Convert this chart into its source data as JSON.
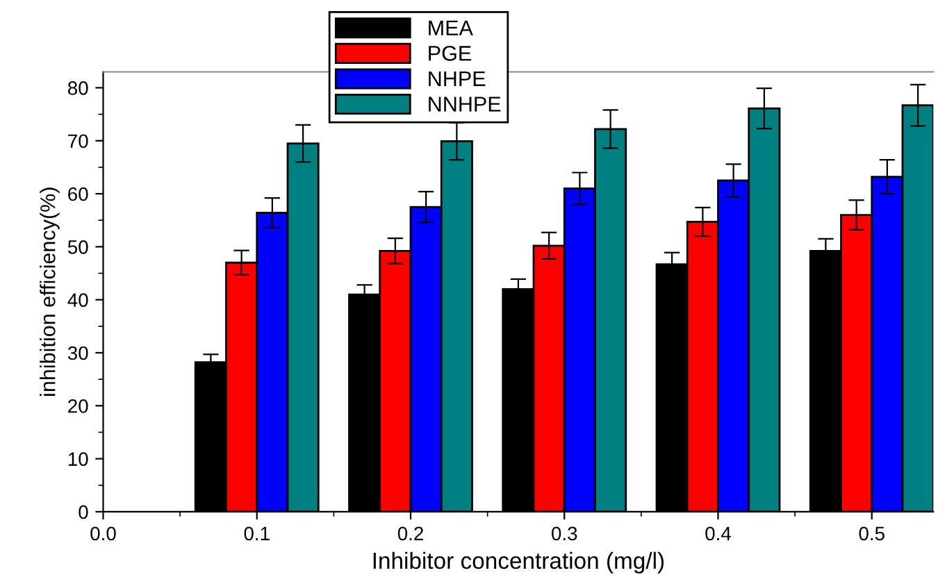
{
  "chart_data": {
    "type": "bar",
    "xlabel": "Inhibitor concentration (mg/l)",
    "ylabel": "inhibition efficiency(%)",
    "xlim": [
      0,
      0.54
    ],
    "xticks": [
      {
        "value": 0,
        "label": "0.0"
      },
      0.1,
      0.2,
      0.3,
      0.4,
      0.5
    ],
    "ylim": [
      0,
      83
    ],
    "yticks": [
      0,
      10,
      20,
      30,
      40,
      50,
      60,
      70,
      80
    ],
    "legend": "top",
    "grid": false,
    "series": [
      {
        "name": "MEA",
        "color": "#000000",
        "x": [
          0.07,
          0.17,
          0.27,
          0.37,
          0.47
        ],
        "values": [
          28.2,
          41,
          42,
          46.7,
          49.2
        ],
        "errors": [
          1.5,
          1.8,
          1.9,
          2.2,
          2.3
        ]
      },
      {
        "name": "PGE",
        "color": "#ff0000",
        "x": [
          0.09,
          0.19,
          0.29,
          0.39,
          0.49
        ],
        "values": [
          47,
          49.2,
          50.2,
          54.7,
          56
        ],
        "errors": [
          2.3,
          2.4,
          2.5,
          2.7,
          2.8
        ]
      },
      {
        "name": "NHPE",
        "color": "#0000ff",
        "x": [
          0.11,
          0.21,
          0.31,
          0.41,
          0.51
        ],
        "values": [
          56.4,
          57.5,
          61,
          62.5,
          63.2
        ],
        "errors": [
          2.8,
          2.9,
          3.0,
          3.1,
          3.2
        ]
      },
      {
        "name": "NNHPE",
        "color": "#008080",
        "x": [
          0.13,
          0.23,
          0.33,
          0.43,
          0.53
        ],
        "values": [
          69.5,
          69.9,
          72.2,
          76.1,
          76.7
        ],
        "errors": [
          3.5,
          3.5,
          3.6,
          3.8,
          3.9
        ]
      }
    ]
  }
}
